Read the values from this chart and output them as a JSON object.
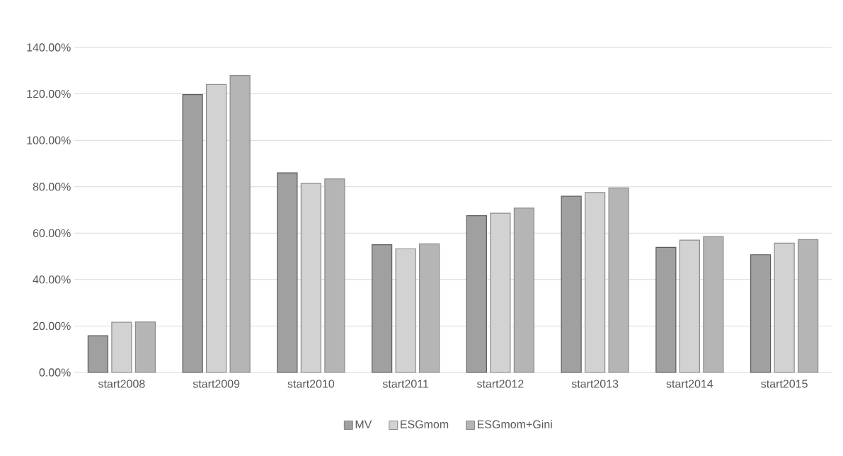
{
  "chart_data": {
    "type": "bar",
    "categories": [
      "start2008",
      "start2009",
      "start2010",
      "start2011",
      "start2012",
      "start2013",
      "start2014",
      "start2015"
    ],
    "series": [
      {
        "name": "MV",
        "color": "#a0a0a0",
        "values": [
          15.8,
          119.7,
          86.0,
          55.0,
          67.5,
          75.9,
          53.9,
          50.7
        ]
      },
      {
        "name": "ESGmom",
        "color": "#d2d2d2",
        "values": [
          21.6,
          124.0,
          81.4,
          53.3,
          68.6,
          77.5,
          57.0,
          55.7
        ]
      },
      {
        "name": "ESGmom+Gini",
        "color": "#b5b5b5",
        "values": [
          21.8,
          127.9,
          83.4,
          55.4,
          70.8,
          79.5,
          58.5,
          57.2
        ]
      }
    ],
    "ylim": [
      0,
      140
    ],
    "yticks": [
      {
        "value": 0,
        "label": "0.00%"
      },
      {
        "value": 20,
        "label": "20.00%"
      },
      {
        "value": 40,
        "label": "40.00%"
      },
      {
        "value": 60,
        "label": "60.00%"
      },
      {
        "value": 80,
        "label": "80.00%"
      },
      {
        "value": 100,
        "label": "100.00%"
      },
      {
        "value": 120,
        "label": "120.00%"
      },
      {
        "value": 140,
        "label": "140.00%"
      }
    ],
    "grid": "y",
    "legend": "bottom"
  }
}
